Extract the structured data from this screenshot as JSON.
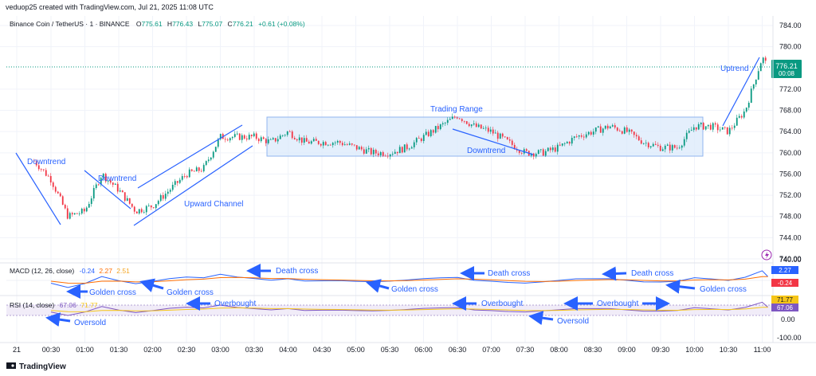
{
  "header": {
    "credit": "veduop25 created with TradingView.com, Jul 21, 2025 11:08 UTC",
    "symbol": "Binance Coin / TetherUS · 1 · BINANCE",
    "o_label": "O",
    "o": "775.61",
    "h_label": "H",
    "h": "776.43",
    "l_label": "L",
    "l": "775.07",
    "c_label": "C",
    "c": "776.21",
    "change": "+0.61 (+0.08%)"
  },
  "price_badge": {
    "price": "776.21",
    "countdown": "00:08"
  },
  "colors": {
    "up": "#089981",
    "down": "#f23645",
    "annotation": "#2962ff",
    "macd": "#2962ff",
    "signal": "#ff6d00",
    "rsi": "#7e57c2",
    "rsi_ma": "#f5c518",
    "range_fill": "#dbe9fb",
    "range_stroke": "#90b4ef",
    "last_price_line": "#089981"
  },
  "chart_data": {
    "type": "line",
    "x": [
      "00:15",
      "00:30",
      "00:45",
      "01:00",
      "01:15",
      "01:30",
      "01:45",
      "02:00",
      "02:15",
      "02:30",
      "02:45",
      "03:00",
      "03:15",
      "03:30",
      "03:45",
      "04:00",
      "04:15",
      "04:30",
      "04:45",
      "05:00",
      "05:15",
      "05:30",
      "05:45",
      "06:00",
      "06:15",
      "06:30",
      "06:45",
      "07:00",
      "07:15",
      "07:30",
      "07:45",
      "08:00",
      "08:15",
      "08:30",
      "08:45",
      "09:00",
      "09:15",
      "09:30",
      "09:45",
      "10:00",
      "10:15",
      "10:30",
      "10:45",
      "11:00",
      "11:05"
    ],
    "series": [
      {
        "values": [
          758.5,
          755,
          748,
          749,
          756,
          753,
          749,
          750,
          753,
          756,
          757,
          763,
          763,
          763,
          762,
          764,
          762,
          762,
          762,
          761,
          760,
          760,
          761,
          763,
          765,
          767,
          765,
          764,
          762,
          760,
          760,
          761,
          763,
          764,
          765,
          764,
          762,
          761,
          761,
          765,
          765,
          764,
          768,
          778,
          776.2
        ]
      }
    ],
    "x_ticks": [
      "21",
      "00:30",
      "01:00",
      "01:30",
      "02:00",
      "02:30",
      "03:00",
      "03:30",
      "04:00",
      "04:30",
      "05:00",
      "05:30",
      "06:00",
      "06:30",
      "07:00",
      "07:30",
      "08:00",
      "08:30",
      "09:00",
      "09:30",
      "10:00",
      "10:30",
      "11:00"
    ],
    "y_ticks": [
      "784.00",
      "780.00",
      "772.00",
      "768.00",
      "764.00",
      "760.00",
      "756.00",
      "752.00",
      "748.00",
      "744.00",
      "740.00"
    ],
    "ylim": [
      740,
      784
    ],
    "grid": true,
    "annotations": {
      "downtrend_1": "Downtrend",
      "downtrend_2": "Downtrend",
      "upward_channel": "Upward Channel",
      "trading_range": "Trading Range",
      "downtrend_3": "Downtrend",
      "uptrend": "Uptrend"
    },
    "macd": {
      "label": "MACD (12, 26, close)",
      "v1": "-0.24",
      "v2": "2.27",
      "v3": "2.51",
      "badge_macd": "2.27",
      "badge_signal": "-0.24",
      "y_tick": "740.00",
      "notes": {
        "golden_1": "Golden cross",
        "golden_2": "Golden cross",
        "death_1": "Death cross",
        "golden_3": "Golden cross",
        "death_2": "Death cross",
        "death_3": "Death cross",
        "golden_4": "Golden cross"
      }
    },
    "rsi": {
      "label": "RSI (14, close)",
      "v1": "67.06",
      "v2": "71.77",
      "badge_ma": "71.77",
      "badge_rsi": "67.06",
      "y_ticks": [
        "0.00",
        "-100.00"
      ],
      "notes": {
        "oversold_1": "Oversold",
        "overbought_1": "Overbought",
        "overbought_2": "Overbought",
        "oversold_2": "Oversold",
        "overbought_3": "Overbought"
      }
    }
  },
  "footer": {
    "brand": "TradingView"
  }
}
